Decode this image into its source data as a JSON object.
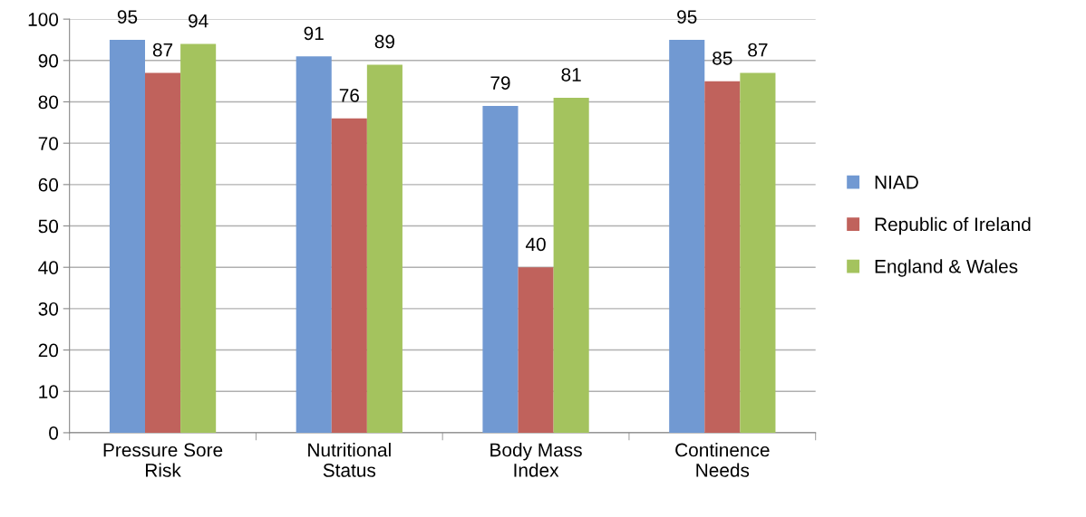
{
  "chart_data": {
    "type": "bar",
    "categories": [
      "Pressure Sore\nRisk",
      "Nutritional\nStatus",
      "Body Mass\nIndex",
      "Continence\nNeeds"
    ],
    "series": [
      {
        "name": "NIAD",
        "color": "#7199d2",
        "values": [
          95,
          91,
          79,
          95
        ]
      },
      {
        "name": "Republic of Ireland",
        "color": "#c0625c",
        "values": [
          87,
          76,
          40,
          85
        ]
      },
      {
        "name": "England & Wales",
        "color": "#a4c35e",
        "values": [
          94,
          89,
          81,
          87
        ]
      }
    ],
    "ylim": [
      0,
      100
    ],
    "yticks": [
      0,
      10,
      20,
      30,
      40,
      50,
      60,
      70,
      80,
      90,
      100
    ],
    "grid": "y",
    "legend": "right",
    "data_labels": true
  }
}
